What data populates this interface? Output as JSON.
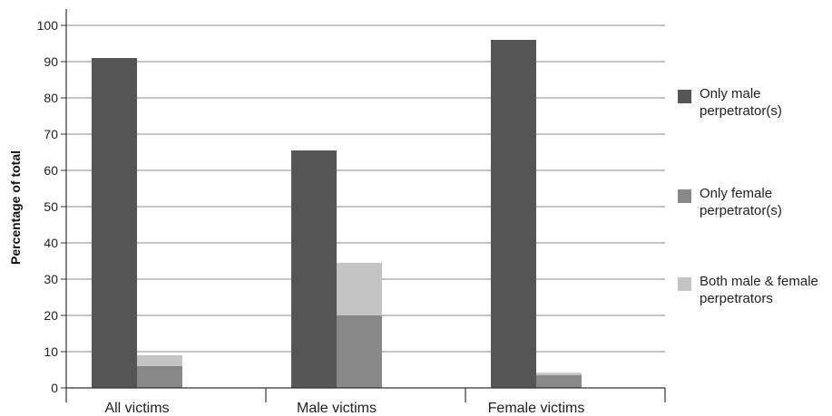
{
  "chart_data": {
    "type": "bar",
    "categories": [
      "All victims",
      "Male victims",
      "Female victims"
    ],
    "series": [
      {
        "name": "Only male perpetrator(s)",
        "values": [
          91,
          65.5,
          96
        ],
        "color": "#555555"
      },
      {
        "name": "Only female perpetrator(s)",
        "values": [
          6,
          20,
          3.5
        ],
        "color": "#888888"
      },
      {
        "name": "Both male & female perpetrators",
        "values": [
          3,
          14.5,
          0.7
        ],
        "color": "#c4c4c4"
      }
    ],
    "stacking": "second bar stacks 'Only female perpetrator(s)' below 'Both male & female perpetrators'",
    "ylabel": "Percentage of total",
    "ylim": [
      0,
      100
    ],
    "yticks": [
      0,
      10,
      20,
      30,
      40,
      50,
      60,
      70,
      80,
      90,
      100
    ],
    "grid": true,
    "legend": {
      "position": "right",
      "entries": [
        {
          "lines": [
            "Only male",
            "perpetrator(s)"
          ],
          "color": "#555555"
        },
        {
          "lines": [
            "Only female",
            "perpetrator(s)"
          ],
          "color": "#888888"
        },
        {
          "lines": [
            "Both male & female",
            "perpetrators"
          ],
          "color": "#c4c4c4"
        }
      ]
    }
  }
}
